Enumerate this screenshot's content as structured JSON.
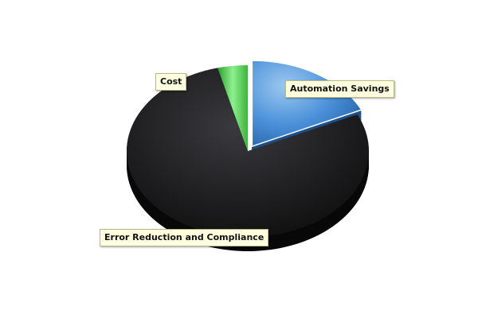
{
  "chart_data": {
    "type": "pie",
    "style": "3d",
    "slices": [
      {
        "label": "Automation Savings",
        "value": 18,
        "color": "#4a90d9",
        "exploded": true
      },
      {
        "label": "Error Reduction and Compliance",
        "value": 78,
        "color": "#1c1c1e",
        "exploded": false
      },
      {
        "label": "Cost",
        "value": 4,
        "color": "#4cc24c",
        "exploded": false
      }
    ]
  }
}
